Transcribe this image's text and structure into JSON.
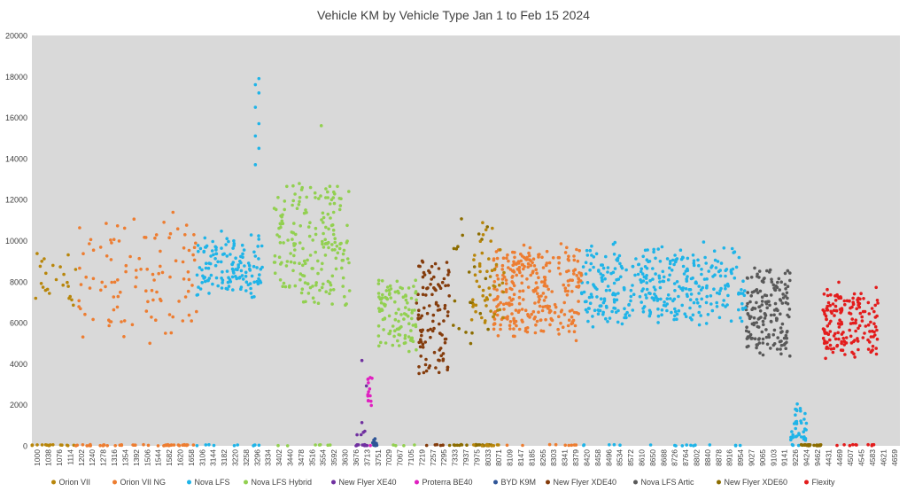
{
  "chart_data": {
    "type": "scatter",
    "title": "Vehicle KM by Vehicle Type Jan 1 to Feb 15 2024",
    "xlabel": "",
    "ylabel": "",
    "ylim": [
      0,
      20000
    ],
    "yticks": [
      0,
      2000,
      4000,
      6000,
      8000,
      10000,
      12000,
      14000,
      16000,
      18000,
      20000
    ],
    "grid": false,
    "legend_position": "bottom",
    "plot_background": "#d9d9d9",
    "categories": [
      "1000",
      "1038",
      "1076",
      "1114",
      "1202",
      "1240",
      "1278",
      "1316",
      "1354",
      "1392",
      "1506",
      "1544",
      "1582",
      "1620",
      "1658",
      "3106",
      "3144",
      "3182",
      "3220",
      "3258",
      "3296",
      "3334",
      "3402",
      "3440",
      "3478",
      "3516",
      "3554",
      "3592",
      "3630",
      "3676",
      "3713",
      "3751",
      "7029",
      "7067",
      "7105",
      "7219",
      "7257",
      "7295",
      "7333",
      "7937",
      "7975",
      "8033",
      "8071",
      "8109",
      "8147",
      "8185",
      "8265",
      "8303",
      "8341",
      "8379",
      "8420",
      "8458",
      "8496",
      "8534",
      "8572",
      "8610",
      "8650",
      "8688",
      "8726",
      "8764",
      "8802",
      "8840",
      "8878",
      "8916",
      "8954",
      "9027",
      "9065",
      "9103",
      "9141",
      "9226",
      "9424",
      "9462",
      "4431",
      "4469",
      "4507",
      "4545",
      "4583",
      "4621",
      "4659"
    ],
    "series": [
      {
        "name": "Orion VII",
        "color": "#b8860b",
        "category_range": [
          0,
          4
        ],
        "points_in_range": 40,
        "y_band": [
          7000,
          9200
        ],
        "scatter": 1300,
        "zero_share": 0.35
      },
      {
        "name": "Orion VII NG",
        "color": "#ed7d31",
        "category_range": [
          4,
          15
        ],
        "points_in_range": 150,
        "y_band": [
          5500,
          11000
        ],
        "scatter": 1800,
        "zero_share": 0.3
      },
      {
        "name": "Nova LFS",
        "color": "#1fb4e8",
        "category_range": [
          15,
          21
        ],
        "points_in_range": 150,
        "y_band": [
          7500,
          10000
        ],
        "scatter": 1200,
        "zero_share": 0.04
      },
      {
        "name": "Nova LFS Hybrid",
        "color": "#92d050",
        "category_range": [
          22,
          29
        ],
        "points_in_range": 200,
        "y_band": [
          7000,
          12500
        ],
        "scatter": 1500,
        "zero_share": 0.03
      },
      {
        "name": "New Flyer XE40",
        "color": "#7030a0",
        "category_range": [
          29.5,
          30.5
        ],
        "points_in_range": 20,
        "y_band": [
          0,
          4500
        ],
        "scatter": 1400,
        "zero_share": 0.3
      },
      {
        "name": "Proterra BE40",
        "color": "#e020c0",
        "category_range": [
          30.5,
          31
        ],
        "points_in_range": 15,
        "y_band": [
          2000,
          3400
        ],
        "scatter": 500,
        "zero_share": 0.1
      },
      {
        "name": "BYD K9M",
        "color": "#2f5597",
        "category_range": [
          31,
          31.6
        ],
        "points_in_range": 10,
        "y_band": [
          0,
          400
        ],
        "scatter": 150,
        "zero_share": 0.6
      },
      {
        "name": "New Flyer XDE40",
        "color": "#843c0c",
        "category_range": [
          35,
          38
        ],
        "points_in_range": 110,
        "y_band": [
          3500,
          8800
        ],
        "scatter": 1400,
        "zero_share": 0.05
      },
      {
        "name": "Nova LFS Artic",
        "color": "#595959",
        "category_range": [
          65,
          69
        ],
        "points_in_range": 170,
        "y_band": [
          4500,
          8500
        ],
        "scatter": 1300,
        "zero_share": 0.0
      },
      {
        "name": "New Flyer XDE60",
        "color": "#8c6d00",
        "category_range": [
          38,
          42
        ],
        "points_in_range": 40,
        "y_band": [
          5000,
          11000
        ],
        "scatter": 1500,
        "zero_share": 0.4
      },
      {
        "name": "Flexity",
        "color": "#e31c1c",
        "category_range": [
          72,
          77
        ],
        "points_in_range": 180,
        "y_band": [
          4500,
          7500
        ],
        "scatter": 1300,
        "zero_share": 0.04
      }
    ],
    "series_extra_ranges": [
      {
        "series": "Nova LFS",
        "category_range": [
          50,
          65
        ],
        "points_in_range": 380,
        "y_band": [
          6000,
          9500
        ],
        "scatter": 1400,
        "zero_share": 0.03
      },
      {
        "series": "Nova LFS",
        "category_range": [
          69,
          70.5
        ],
        "points_in_range": 40,
        "y_band": [
          300,
          2000
        ],
        "scatter": 600,
        "zero_share": 0.15
      },
      {
        "series": "Nova LFS Hybrid",
        "category_range": [
          31.5,
          35
        ],
        "points_in_range": 110,
        "y_band": [
          4500,
          8000
        ],
        "scatter": 1400,
        "zero_share": 0.04
      },
      {
        "series": "Orion VII NG",
        "category_range": [
          42,
          50
        ],
        "points_in_range": 300,
        "y_band": [
          5500,
          9500
        ],
        "scatter": 1400,
        "zero_share": 0.02
      },
      {
        "series": "Orion VII",
        "category_range": [
          40,
          43
        ],
        "points_in_range": 60,
        "y_band": [
          6000,
          11000
        ],
        "scatter": 1600,
        "zero_share": 0.15
      },
      {
        "series": "New Flyer XDE60",
        "category_range": [
          70,
          72
        ],
        "points_in_range": 30,
        "y_band": [
          0,
          100
        ],
        "scatter": 50,
        "zero_share": 1.0
      }
    ],
    "highlights": [
      {
        "series": "Nova LFS",
        "category": "3296",
        "values": [
          13700,
          14500,
          15100,
          15700,
          16500,
          17200,
          17600,
          17900
        ]
      },
      {
        "series": "Nova LFS Hybrid",
        "category": "3554",
        "values": [
          15600
        ]
      }
    ]
  }
}
